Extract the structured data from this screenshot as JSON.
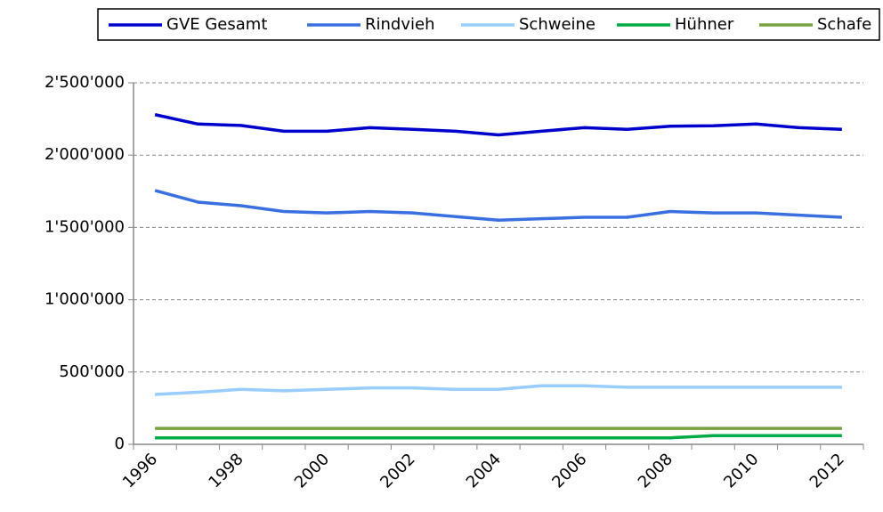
{
  "chart_data": {
    "type": "line",
    "categories": [
      "1996",
      null,
      "1998",
      null,
      "2000",
      null,
      "2002",
      null,
      "2004",
      null,
      "2006",
      null,
      "2008",
      null,
      "2010",
      null,
      "2012"
    ],
    "series": [
      {
        "name": "GVE Gesamt",
        "color": "#0000cc",
        "values": [
          2280000,
          2215000,
          2205000,
          2165000,
          2165000,
          2190000,
          2178000,
          2165000,
          2140000,
          2165000,
          2190000,
          2178000,
          2200000,
          2203000,
          2215000,
          2190000,
          2178000
        ]
      },
      {
        "name": "Rindvieh",
        "color": "#3a6fe0",
        "values": [
          1755000,
          1675000,
          1650000,
          1610000,
          1600000,
          1610000,
          1600000,
          1575000,
          1550000,
          1560000,
          1570000,
          1570000,
          1610000,
          1600000,
          1600000,
          1585000,
          1570000
        ]
      },
      {
        "name": "Schweine",
        "color": "#99ccff",
        "values": [
          345000,
          360000,
          380000,
          370000,
          380000,
          390000,
          390000,
          380000,
          380000,
          405000,
          405000,
          395000,
          395000,
          395000,
          395000,
          395000,
          395000
        ]
      },
      {
        "name": "Hühner",
        "color": "#00aa44",
        "values": [
          45000,
          45000,
          45000,
          45000,
          45000,
          45000,
          45000,
          45000,
          45000,
          45000,
          45000,
          45000,
          45000,
          60000,
          60000,
          60000,
          60000
        ]
      },
      {
        "name": "Schafe",
        "color": "#77a040",
        "values": [
          110000,
          110000,
          110000,
          110000,
          110000,
          110000,
          110000,
          110000,
          110000,
          110000,
          110000,
          110000,
          110000,
          110000,
          110000,
          110000,
          110000
        ]
      }
    ],
    "ylim": [
      0,
      2500000
    ],
    "yticks": [
      0,
      {
        "value": 500000,
        "label": "500'000"
      },
      {
        "value": 1000000,
        "label": "1'000'000"
      },
      {
        "value": 1500000,
        "label": "1'500'000"
      },
      {
        "value": 2000000,
        "label": "2'000'000"
      },
      {
        "value": 2500000,
        "label": "2'500'000"
      }
    ],
    "grid": true,
    "legend": "top"
  }
}
